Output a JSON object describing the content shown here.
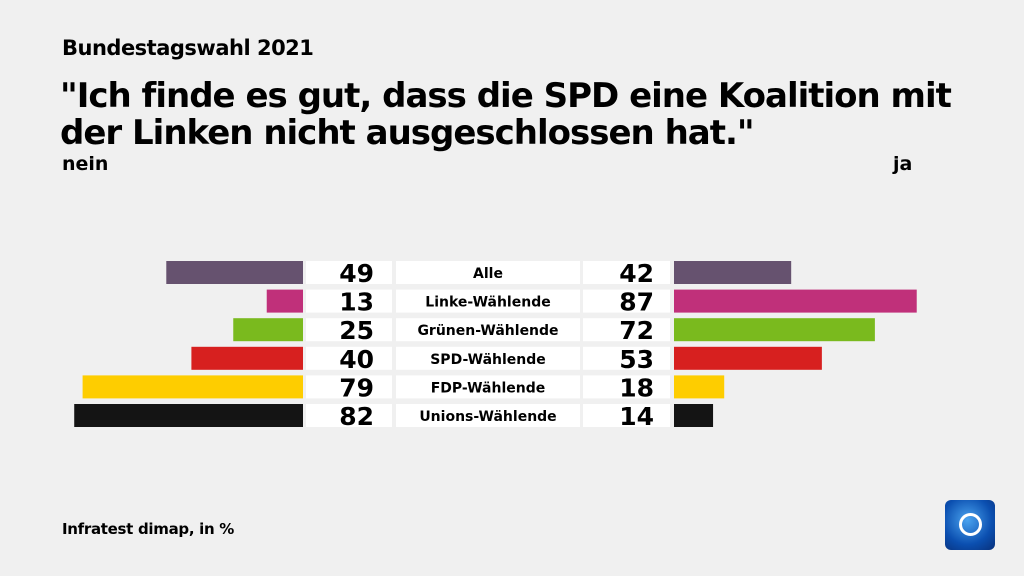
{
  "header": {
    "subtitle": "Bundestagswahl 2021",
    "title": "\"Ich finde es gut, dass die SPD eine Koalition mit der Linken nicht ausgeschlossen hat.\""
  },
  "footer": {
    "source": "Infratest dimap, in %"
  },
  "chart_data": {
    "type": "bar",
    "left_label": "nein",
    "right_label": "ja",
    "categories": [
      "Alle",
      "Linke-Wählende",
      "Grünen-Wählende",
      "SPD-Wählende",
      "FDP-Wählende",
      "Unions-Wählende"
    ],
    "series": [
      {
        "name": "nein",
        "values": [
          49,
          13,
          25,
          40,
          79,
          82
        ]
      },
      {
        "name": "ja",
        "values": [
          42,
          87,
          72,
          53,
          18,
          14
        ]
      }
    ],
    "colors": [
      "#66526f",
      "#c0307a",
      "#7aba1e",
      "#d7201f",
      "#fecd00",
      "#141414"
    ],
    "unit": "%"
  }
}
